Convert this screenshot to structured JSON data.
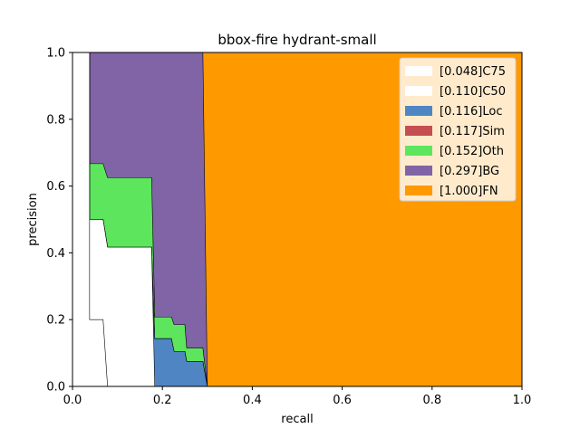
{
  "chart_data": {
    "type": "area",
    "title": "bbox-fire hydrant-small",
    "xlabel": "recall",
    "ylabel": "precision",
    "xlim": [
      0,
      1
    ],
    "ylim": [
      0,
      1
    ],
    "x_ticks": [
      "0.0",
      "0.2",
      "0.4",
      "0.6",
      "0.8",
      "1.0"
    ],
    "y_ticks": [
      "0.0",
      "0.2",
      "0.4",
      "0.6",
      "0.8",
      "1.0"
    ],
    "grid": false,
    "legend_position": "top-right",
    "series": [
      {
        "name": "[0.048]C75",
        "color": "#ffffff",
        "points": [
          [
            0.033,
            1.0
          ],
          [
            0.038,
            1.0
          ],
          [
            0.038,
            0.2
          ],
          [
            0.068,
            0.2
          ],
          [
            0.078,
            0.0
          ]
        ]
      },
      {
        "name": "[0.110]C50",
        "color": "#ffffff",
        "points": [
          [
            0.033,
            1.0
          ],
          [
            0.038,
            1.0
          ],
          [
            0.038,
            0.5
          ],
          [
            0.068,
            0.5
          ],
          [
            0.078,
            0.417
          ],
          [
            0.176,
            0.417
          ],
          [
            0.183,
            0.0
          ],
          [
            0.26,
            0.0
          ]
        ]
      },
      {
        "name": "[0.116]Loc",
        "color": "#4f85c3",
        "points": [
          [
            0.033,
            1.0
          ],
          [
            0.038,
            1.0
          ],
          [
            0.038,
            0.5
          ],
          [
            0.068,
            0.5
          ],
          [
            0.078,
            0.417
          ],
          [
            0.176,
            0.417
          ],
          [
            0.183,
            0.143
          ],
          [
            0.22,
            0.143
          ],
          [
            0.226,
            0.105
          ],
          [
            0.25,
            0.105
          ],
          [
            0.254,
            0.075
          ],
          [
            0.29,
            0.075
          ],
          [
            0.3,
            0.0
          ]
        ]
      },
      {
        "name": "[0.117]Sim",
        "color": "#c44e52",
        "points": [
          [
            0.033,
            1.0
          ],
          [
            0.038,
            1.0
          ],
          [
            0.038,
            0.5
          ],
          [
            0.068,
            0.5
          ],
          [
            0.078,
            0.417
          ],
          [
            0.176,
            0.417
          ],
          [
            0.183,
            0.143
          ],
          [
            0.22,
            0.143
          ],
          [
            0.226,
            0.105
          ],
          [
            0.25,
            0.105
          ],
          [
            0.254,
            0.075
          ],
          [
            0.29,
            0.075
          ],
          [
            0.3,
            0.0
          ]
        ]
      },
      {
        "name": "[0.152]Oth",
        "color": "#5de65d",
        "points": [
          [
            0.033,
            1.0
          ],
          [
            0.038,
            1.0
          ],
          [
            0.038,
            0.667
          ],
          [
            0.068,
            0.667
          ],
          [
            0.078,
            0.625
          ],
          [
            0.176,
            0.625
          ],
          [
            0.183,
            0.208
          ],
          [
            0.22,
            0.208
          ],
          [
            0.226,
            0.185
          ],
          [
            0.25,
            0.185
          ],
          [
            0.254,
            0.115
          ],
          [
            0.29,
            0.115
          ],
          [
            0.3,
            0.0
          ]
        ]
      },
      {
        "name": "[0.297]BG",
        "color": "#8064a6",
        "points": [
          [
            0.033,
            1.0
          ],
          [
            0.29,
            1.0
          ],
          [
            0.3,
            0.0
          ]
        ]
      },
      {
        "name": "[1.000]FN",
        "color": "#ff9900",
        "points": [
          [
            0.0,
            1.0
          ],
          [
            1.0,
            1.0
          ],
          [
            1.0,
            0.0
          ]
        ]
      }
    ]
  }
}
